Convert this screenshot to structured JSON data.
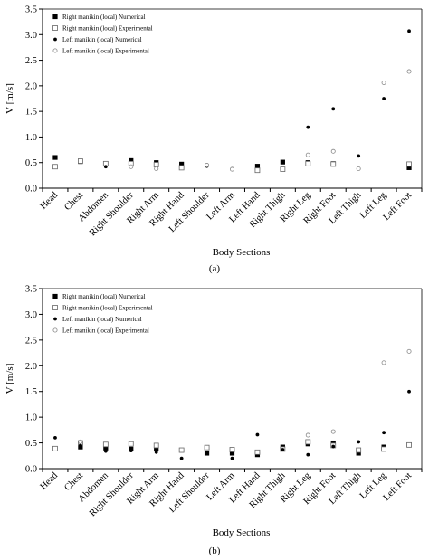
{
  "chart_data": [
    {
      "type": "scatter",
      "panel_label": "(a)",
      "ylabel": "V [m/s]",
      "xlabel": "Body Sections",
      "ylim": [
        0,
        3.5
      ],
      "yticks": [
        "0.0",
        "0.5",
        "1.0",
        "1.5",
        "2.0",
        "2.5",
        "3.0",
        "3.5"
      ],
      "legend_position": "top-left",
      "categories": [
        "Head",
        "Chest",
        "Abdomen",
        "Right Shoulder",
        "Right Arm",
        "Right Hand",
        "Left Shoulder",
        "Left Arm",
        "Left Hand",
        "Right Thigh",
        "Right Leg",
        "Right Foot",
        "Left Thigh",
        "Left Leg",
        "Left Foot"
      ],
      "series": [
        {
          "name": "Right manikin  (local) Numerical",
          "marker": "filled-square",
          "values": [
            0.6,
            0.52,
            null,
            0.54,
            0.5,
            0.47,
            null,
            null,
            0.43,
            0.51,
            0.5,
            0.48,
            null,
            null,
            0.4
          ]
        },
        {
          "name": "Right manikin  (local) Experimental",
          "marker": "open-square",
          "values": [
            0.42,
            0.53,
            0.48,
            0.48,
            0.46,
            0.4,
            null,
            null,
            0.35,
            0.37,
            0.48,
            0.47,
            null,
            null,
            0.47
          ]
        },
        {
          "name": "Left manikin  (local) Numerical",
          "marker": "filled-circle",
          "values": [
            0.6,
            null,
            0.42,
            null,
            null,
            null,
            0.43,
            0.38,
            null,
            null,
            1.19,
            1.55,
            0.63,
            1.75,
            3.07
          ]
        },
        {
          "name": "Left manikin  (local) Experimental",
          "marker": "open-circle",
          "values": [
            null,
            null,
            null,
            0.42,
            0.38,
            null,
            0.45,
            0.37,
            null,
            null,
            0.65,
            0.72,
            0.38,
            2.06,
            2.28
          ]
        }
      ]
    },
    {
      "type": "scatter",
      "panel_label": "(b)",
      "ylabel": "V [m/s]",
      "xlabel": "Body Sections",
      "ylim": [
        0,
        3.5
      ],
      "yticks": [
        "0.0",
        "0.5",
        "1.0",
        "1.5",
        "2.0",
        "2.5",
        "3.0",
        "3.5"
      ],
      "legend_position": "top-left",
      "categories": [
        "Head",
        "Chest",
        "Abdomen",
        "Right Shoulder",
        "Right Arm",
        "Right Hand",
        "Left Shoulder",
        "Left Arm",
        "Left Hand",
        "Right Thigh",
        "Right Leg",
        "Right Foot",
        "Left Thigh",
        "Left Leg",
        "Left Foot"
      ],
      "series": [
        {
          "name": "Right manikin  (local) Numerical",
          "marker": "filled-square",
          "values": [
            null,
            0.42,
            0.4,
            0.38,
            0.38,
            null,
            0.3,
            0.3,
            0.27,
            0.42,
            0.48,
            0.5,
            0.3,
            0.42,
            0.46
          ]
        },
        {
          "name": "Right manikin  (local) Experimental",
          "marker": "open-square",
          "values": [
            0.39,
            0.5,
            0.47,
            0.48,
            0.45,
            0.36,
            0.41,
            0.37,
            0.32,
            0.38,
            0.52,
            0.45,
            0.36,
            0.38,
            0.46
          ]
        },
        {
          "name": "Left manikin  (local) Numerical",
          "marker": "filled-circle",
          "values": [
            0.6,
            0.45,
            0.34,
            0.35,
            0.32,
            0.2,
            null,
            0.2,
            0.66,
            0.37,
            0.27,
            0.43,
            0.52,
            0.7,
            1.5
          ]
        },
        {
          "name": "Left manikin  (local) Experimental",
          "marker": "open-circle",
          "values": [
            null,
            0.52,
            null,
            null,
            null,
            null,
            null,
            null,
            null,
            null,
            0.65,
            0.72,
            null,
            2.06,
            2.28
          ]
        }
      ]
    }
  ]
}
